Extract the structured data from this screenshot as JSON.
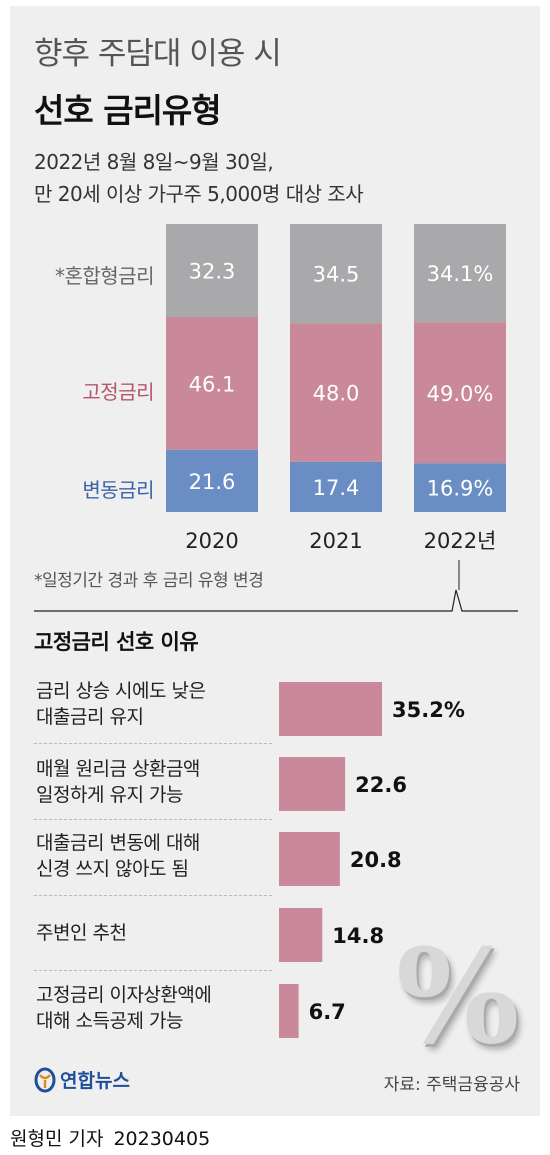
{
  "header": {
    "subtitle": "향후 주담대 이용 시",
    "title": "선호 금리유형",
    "desc_line1": "2022년 8월 8일~9월 30일,",
    "desc_line2": "만 20세 이상 가구주 5,000명 대상 조사"
  },
  "colors": {
    "mixed": "#a9a9ab",
    "fixed": "#c9899a",
    "variable": "#6a8ec4",
    "reason_bar": "#c9899a",
    "mixed_label": "#666666",
    "fixed_label": "#b6566c",
    "variable_label": "#3a63a8"
  },
  "row_labels": {
    "mixed": "*혼합형금리",
    "fixed": "고정금리",
    "variable": "변동금리"
  },
  "chart_data": [
    {
      "type": "bar",
      "stacked": true,
      "categories": [
        "2020",
        "2021",
        "2022년"
      ],
      "series": [
        {
          "name": "*혼합형금리",
          "values": [
            32.3,
            34.5,
            34.1
          ],
          "labels": [
            "32.3",
            "34.5",
            "34.1%"
          ]
        },
        {
          "name": "고정금리",
          "values": [
            46.1,
            48.0,
            49.0
          ],
          "labels": [
            "46.1",
            "48.0",
            "49.0%"
          ]
        },
        {
          "name": "변동금리",
          "values": [
            21.6,
            17.4,
            16.9
          ],
          "labels": [
            "21.6",
            "17.4",
            "16.9%"
          ]
        }
      ],
      "unit": "%"
    },
    {
      "type": "bar",
      "orientation": "horizontal",
      "title": "고정금리 선호 이유",
      "categories": [
        "금리 상승 시에도 낮은 대출금리 유지",
        "매월 원리금 상환금액 일정하게 유지 가능",
        "대출금리 변동에 대해 신경 쓰지 않아도 됨",
        "주변인 추천",
        "고정금리 이자상환액에 대해 소득공제 가능"
      ],
      "values": [
        35.2,
        22.6,
        20.8,
        14.8,
        6.7
      ],
      "labels": [
        "35.2%",
        "22.6",
        "20.8",
        "14.8",
        "6.7"
      ],
      "unit": "%"
    }
  ],
  "footnote": "*일정기간 경과 후 금리 유형 변경",
  "reasons_title": "고정금리 선호 이유",
  "reasons": [
    {
      "line1": "금리 상승 시에도 낮은",
      "line2": "대출금리 유지"
    },
    {
      "line1": "매월 원리금 상환금액",
      "line2": "일정하게 유지 가능"
    },
    {
      "line1": "대출금리 변동에 대해",
      "line2": "신경 쓰지 않아도 됨"
    },
    {
      "line1": "주변인 추천",
      "line2": ""
    },
    {
      "line1": "고정금리 이자상환액에",
      "line2": "대해 소득공제 가능"
    }
  ],
  "decoration_symbol": "%",
  "logo_text": "연합뉴스",
  "source": "자료: 주택금융공사",
  "byline": {
    "reporter": "원형민 기자",
    "date": "20230405"
  }
}
